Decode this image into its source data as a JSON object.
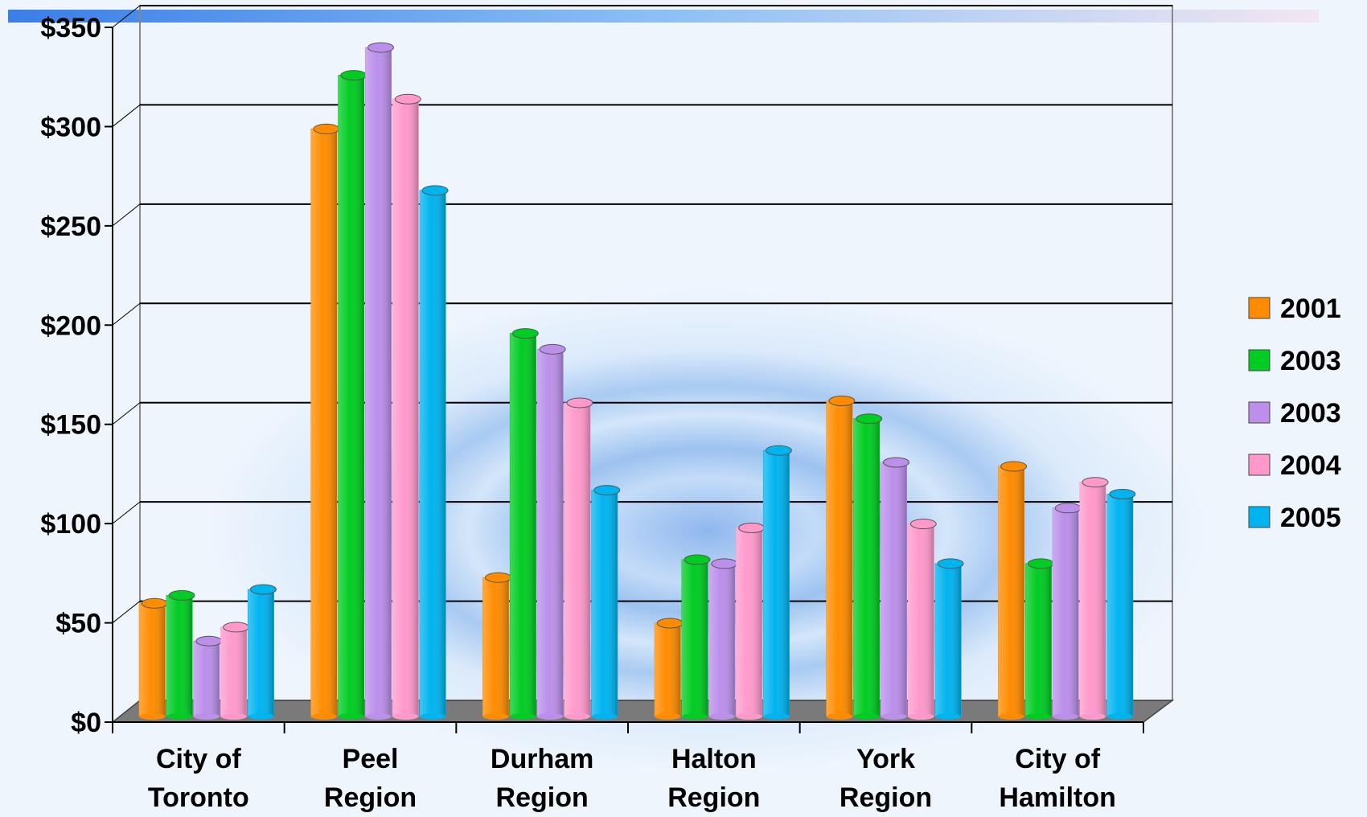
{
  "chart_data": {
    "type": "bar3d",
    "categories": [
      "City of Toronto",
      "Peel Region",
      "Durham Region",
      "Halton Region",
      "York Region",
      "City of Hamilton"
    ],
    "series": [
      {
        "name": "2001",
        "color": "#ff8c00",
        "values": [
          57,
          296,
          70,
          47,
          159,
          126
        ]
      },
      {
        "name": "2003",
        "color": "#00cc22",
        "values": [
          61,
          323,
          193,
          79,
          150,
          77
        ]
      },
      {
        "name": "2003",
        "color": "#bb8fea",
        "values": [
          38,
          337,
          185,
          77,
          128,
          105
        ]
      },
      {
        "name": "2004",
        "color": "#ff99cc",
        "values": [
          45,
          311,
          158,
          95,
          97,
          118
        ]
      },
      {
        "name": "2005",
        "color": "#00b4f0",
        "values": [
          64,
          265,
          114,
          134,
          77,
          112
        ]
      }
    ],
    "ylim": [
      0,
      350
    ],
    "yticks": [
      {
        "value": 0,
        "label": "$0"
      },
      {
        "value": 50,
        "label": "$50"
      },
      {
        "value": 100,
        "label": "$100"
      },
      {
        "value": 150,
        "label": "$150"
      },
      {
        "value": 200,
        "label": "$200"
      },
      {
        "value": 250,
        "label": "$250"
      },
      {
        "value": 300,
        "label": "$300"
      },
      {
        "value": 350,
        "label": "$350"
      }
    ],
    "grid": true,
    "legend": "right"
  }
}
